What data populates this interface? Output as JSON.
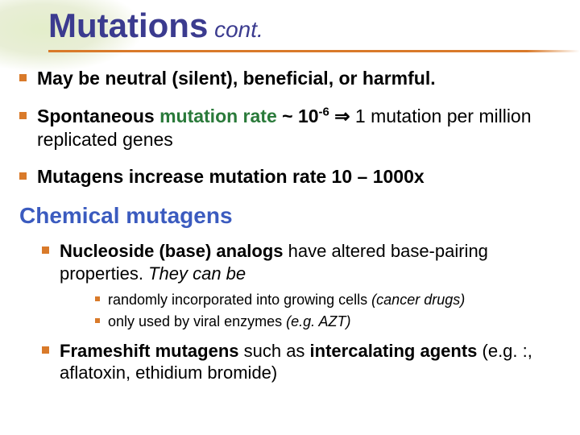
{
  "colors": {
    "title": "#3b3b8f",
    "rule": "#d97a2a",
    "bullet": "#d97a2a",
    "heading": "#3b5bbf",
    "mutation_rate": "#2a7a3a",
    "body_text": "#000000",
    "background": "#ffffff"
  },
  "typography": {
    "title_fontsize": 42,
    "title_cont_fontsize": 28,
    "main_bullet_fontsize": 23,
    "section_heading_fontsize": 28,
    "sub_bullet_fontsize": 22,
    "subsub_bullet_fontsize": 18,
    "font_family": "Arial"
  },
  "title": {
    "main": "Mutations",
    "cont": " cont."
  },
  "bullets": {
    "b1": "May be neutral (silent), beneficial, or harmful.",
    "b2": {
      "prefix": "Spontaneous ",
      "rate_label": "mutation rate",
      "approx": " ~ 10",
      "exp": "-6",
      "arrow": " ⇒ ",
      "suffix": "1 mutation per million replicated genes"
    },
    "b3": "Mutagens increase mutation rate 10 – 1000x"
  },
  "section": "Chemical mutagens",
  "sub": {
    "s1": {
      "bold": "Nucleoside (base) analogs",
      "plain": " have altered base-pairing properties. ",
      "ital": "They can be"
    },
    "s1a": {
      "plain": "randomly incorporated into growing cells ",
      "ital": "(cancer drugs)"
    },
    "s1b": {
      "plain": "only used by viral enzymes ",
      "ital": "(e.g. AZT)"
    },
    "s2": {
      "bold1": "Frameshift mutagens",
      "plain1": " such as ",
      "bold2": "intercalating agents",
      "plain2": "  (e.g. :, aflatoxin, ethidium bromide)"
    }
  }
}
